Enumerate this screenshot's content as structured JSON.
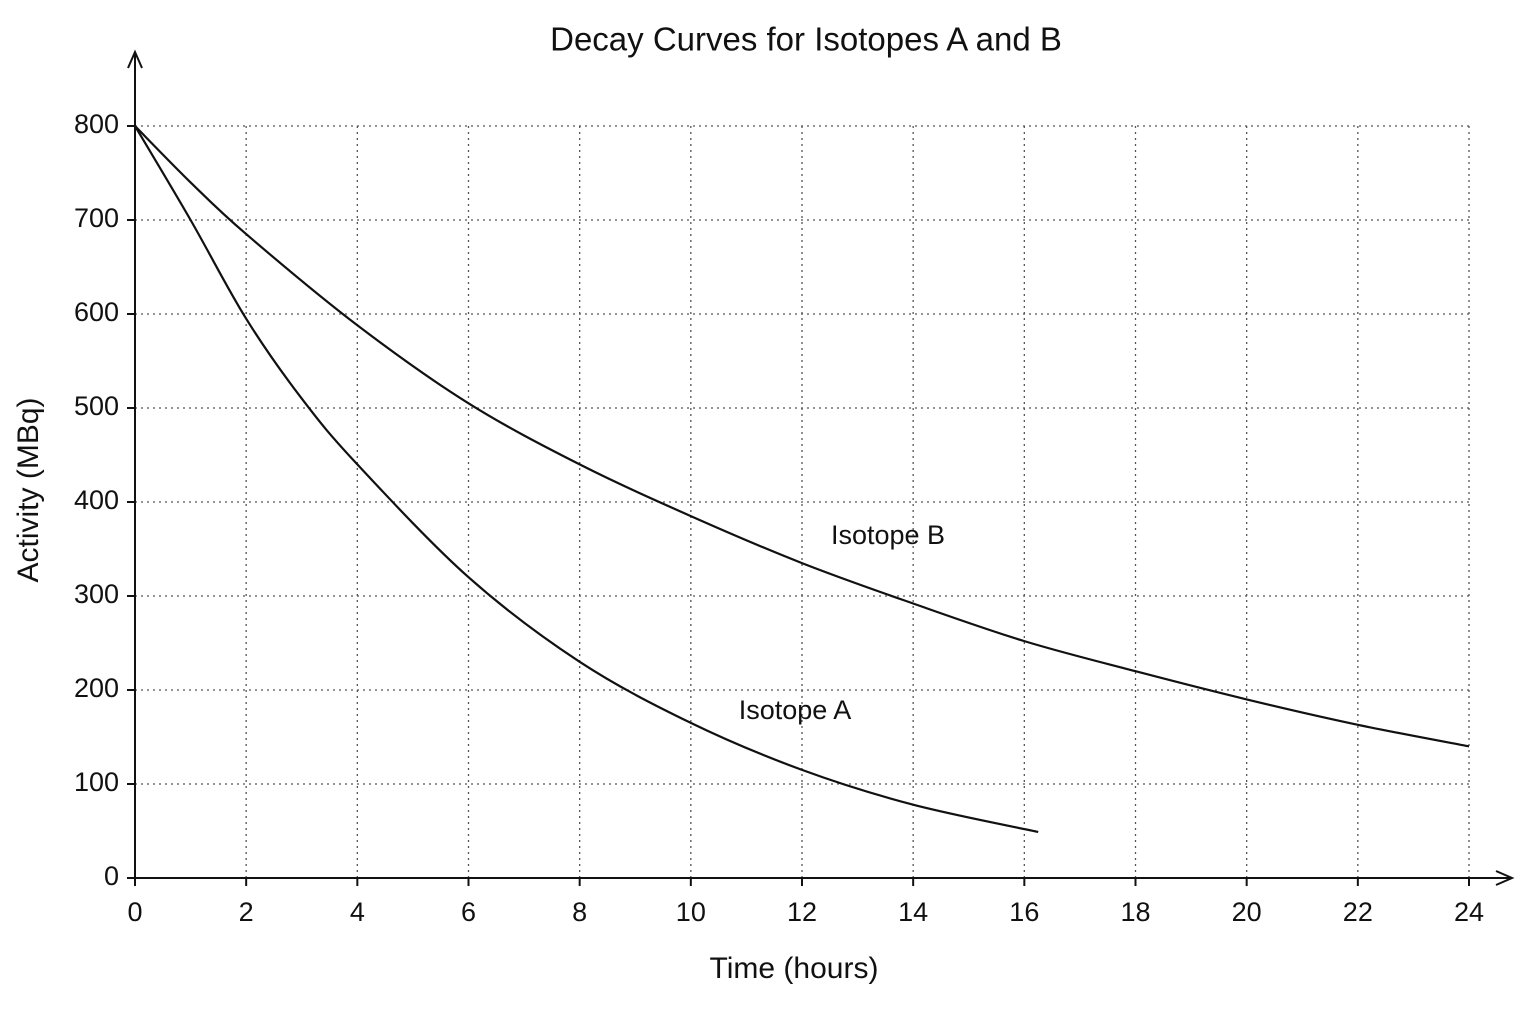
{
  "chart_data": {
    "type": "line",
    "title": "Decay Curves for Isotopes A and B",
    "x_label": "Time (hours)",
    "y_label": "Activity (MBq)",
    "xlim": [
      0,
      24
    ],
    "ylim": [
      0,
      800
    ],
    "xticks": [
      0,
      2,
      4,
      6,
      8,
      10,
      12,
      14,
      16,
      18,
      20,
      22,
      24
    ],
    "yticks": [
      0,
      100,
      200,
      300,
      400,
      500,
      600,
      700,
      800
    ],
    "grid": true,
    "series": [
      {
        "name": "Isotope A",
        "color": "#111111",
        "x": [
          0,
          1,
          2,
          3,
          4,
          6,
          8,
          10,
          12,
          14,
          16.25
        ],
        "values": [
          800,
          700,
          595,
          510,
          440,
          320,
          230,
          165,
          115,
          78,
          49
        ]
      },
      {
        "name": "Isotope B",
        "color": "#111111",
        "x": [
          0,
          1,
          2,
          4,
          6,
          8,
          10,
          12,
          14,
          16,
          18,
          20,
          22,
          24
        ],
        "values": [
          800,
          740,
          685,
          588,
          505,
          440,
          385,
          335,
          292,
          252,
          220,
          190,
          163,
          140
        ]
      }
    ]
  }
}
